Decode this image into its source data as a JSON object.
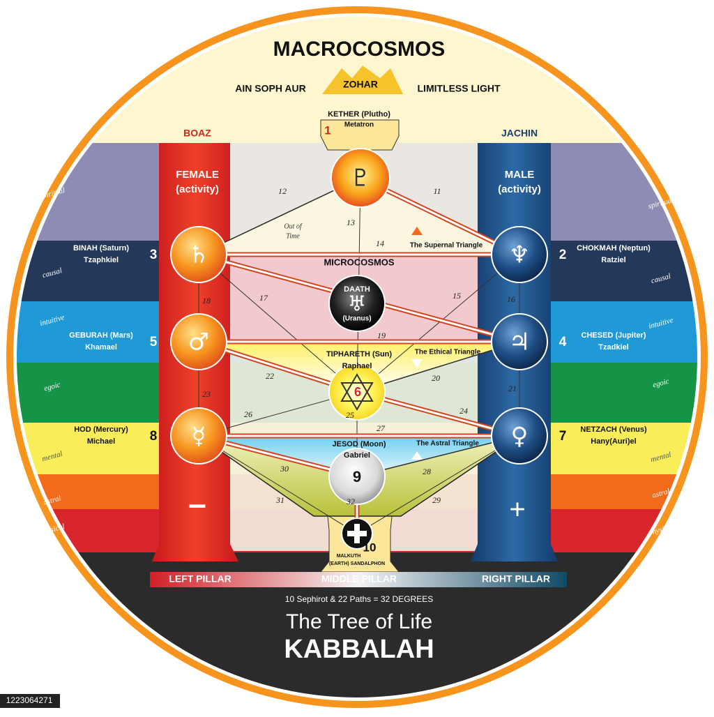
{
  "header": {
    "title": "MACROCOSMOS",
    "left": "AIN SOPH AUR",
    "center": "ZOHAR",
    "right": "LIMITLESS LIGHT"
  },
  "pillars": {
    "left": {
      "name": "BOAZ",
      "polarity": [
        "FEMALE",
        "(activity)"
      ],
      "sign": "–",
      "label": "LEFT PILLAR"
    },
    "middle": {
      "label": "MIDDLE PILLAR"
    },
    "right": {
      "name": "JACHIN",
      "polarity": [
        "MALE",
        "(activity)"
      ],
      "sign": "+",
      "label": "RIGHT PILLAR"
    }
  },
  "sephirot": [
    {
      "number": 1,
      "name": "KETHER (Plutho)",
      "angel": "Metatron",
      "symbol": "♇"
    },
    {
      "number": 2,
      "name": "CHOKMAH (Neptun)",
      "angel": "Ratziel",
      "symbol": "♆"
    },
    {
      "number": 3,
      "name": "BINAH (Saturn)",
      "angel": "Tzaphkiel",
      "symbol": "♄"
    },
    {
      "number": 4,
      "name": "CHESED (Jupiter)",
      "angel": "Tzadkiel",
      "symbol": "♃"
    },
    {
      "number": 5,
      "name": "GEBURAH (Mars)",
      "angel": "Khamael",
      "symbol": "♂"
    },
    {
      "number": 6,
      "name": "TIPHARETH (Sun)",
      "angel": "Raphael"
    },
    {
      "number": 7,
      "name": "NETZACH (Venus)",
      "angel": "Hany(Auri)el",
      "symbol": "♀"
    },
    {
      "number": 8,
      "name": "HOD (Mercury)",
      "angel": "Michael",
      "symbol": "☿"
    },
    {
      "number": 9,
      "name": "JESOD (Moon)",
      "angel": "Gabriel"
    },
    {
      "number": 10,
      "name": "MALKUTH",
      "angel": "(EARTH) SANDALPHON"
    }
  ],
  "daath": {
    "name": "DAATH",
    "planet": "(Uranus)",
    "symbol": "♅"
  },
  "microcosmos": "MICROCOSMOS",
  "out_of_time": [
    "Out of",
    "Time"
  ],
  "triangles": [
    "The Supernal Triangle",
    "The Ethical Triangle",
    "The Astral Triangle"
  ],
  "paths": [
    11,
    12,
    13,
    14,
    15,
    16,
    17,
    18,
    19,
    20,
    21,
    22,
    23,
    24,
    25,
    26,
    27,
    28,
    29,
    30,
    31,
    32
  ],
  "planes": [
    "spiritual",
    "causal",
    "intuitive",
    "egoic",
    "mental",
    "astral",
    "physical"
  ],
  "footer": {
    "summary": "10 Sephirot & 22 Paths = 32 DEGREES",
    "title": "The Tree of Life",
    "subtitle": "KABBALAH",
    "image_id": "1223064271"
  }
}
